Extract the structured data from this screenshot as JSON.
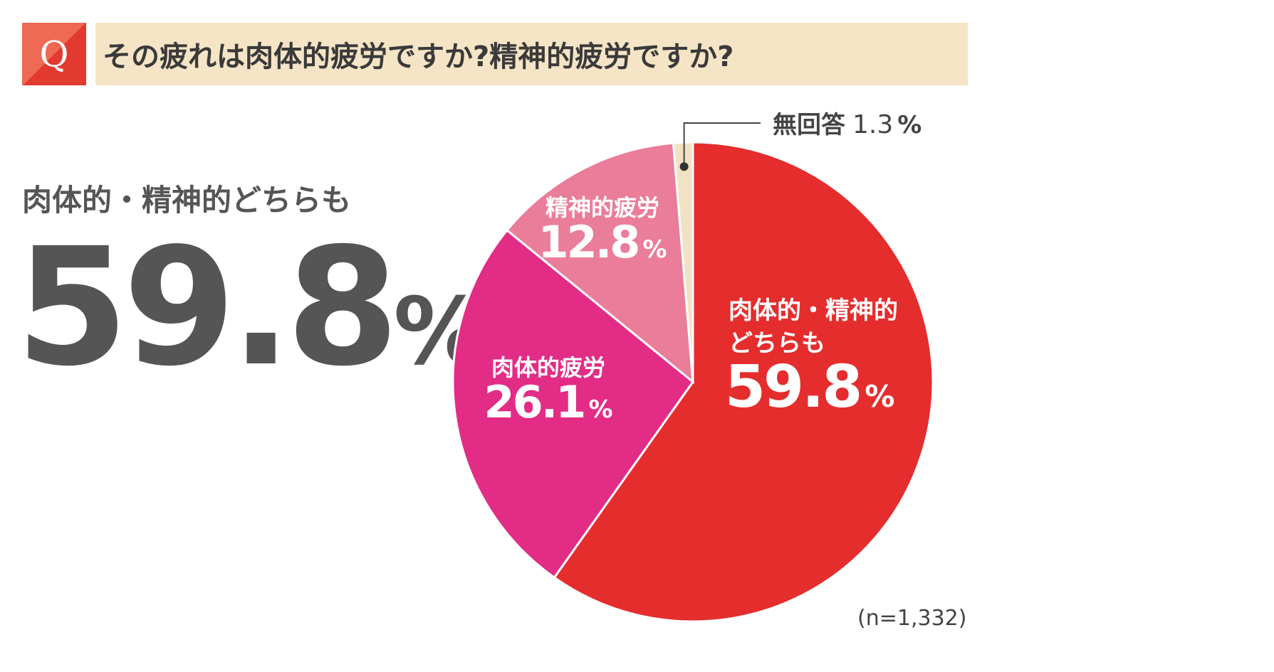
{
  "header": {
    "q_badge": "Q",
    "title": "その疲れは肉体的疲労ですか?精神的疲労ですか?"
  },
  "highlight": {
    "label": "肉体的・精神的どちらも",
    "value": "59.8",
    "unit": "%"
  },
  "chart_data": {
    "type": "pie",
    "start": "top",
    "direction": "clockwise",
    "slices": [
      {
        "label_lines": [
          "肉体的・精神的",
          "どちらも"
        ],
        "value": 59.8,
        "value_text": "59.8",
        "color": "#e52d2d"
      },
      {
        "label_lines": [
          "肉体的疲労"
        ],
        "value": 26.1,
        "value_text": "26.1",
        "color": "#e22c86"
      },
      {
        "label_lines": [
          "精神的疲労"
        ],
        "value": 12.8,
        "value_text": "12.8",
        "color": "#ea7d9a"
      },
      {
        "label_lines": [
          "無回答"
        ],
        "value": 1.3,
        "value_text": "1.3",
        "color": "#f2e2c4"
      }
    ],
    "unit": "%",
    "sample_note": "(n=1,332)"
  }
}
